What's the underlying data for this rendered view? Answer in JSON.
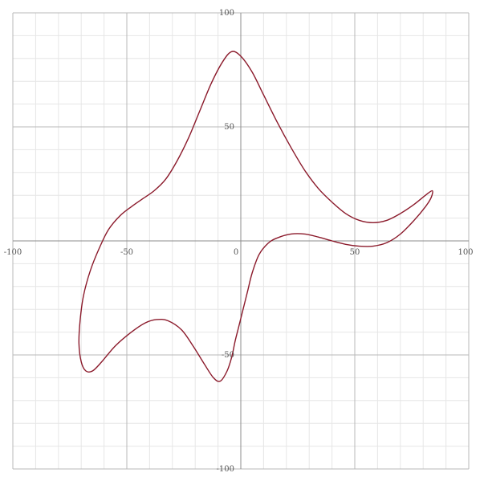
{
  "chart_data": {
    "type": "line",
    "title": "",
    "xlabel": "",
    "ylabel": "",
    "xlim": [
      -100,
      100
    ],
    "ylim": [
      -100,
      100
    ],
    "grid": true,
    "minor_grid_step": 10,
    "major_grid_step": 50,
    "closed": true,
    "x_tick_labels": [
      "-100",
      "-50",
      "0",
      "50",
      "100"
    ],
    "y_tick_labels": [
      "100",
      "50",
      "-50",
      "-100"
    ],
    "series": [
      {
        "color": "#8b1a2b",
        "points": [
          [
            -4,
            83
          ],
          [
            0,
            81
          ],
          [
            5,
            74
          ],
          [
            10,
            64
          ],
          [
            16,
            52
          ],
          [
            22,
            41
          ],
          [
            28,
            31
          ],
          [
            34,
            23
          ],
          [
            40,
            17
          ],
          [
            46,
            12
          ],
          [
            52,
            9
          ],
          [
            58,
            8
          ],
          [
            64,
            9
          ],
          [
            70,
            12
          ],
          [
            76,
            16
          ],
          [
            81,
            20
          ],
          [
            84,
            22
          ],
          [
            83.5,
            19
          ],
          [
            81,
            15
          ],
          [
            76,
            9
          ],
          [
            70,
            3
          ],
          [
            64,
            -0.8
          ],
          [
            58,
            -2.3
          ],
          [
            52,
            -2.3
          ],
          [
            46,
            -1.5
          ],
          [
            40,
            0
          ],
          [
            34,
            1.7
          ],
          [
            28,
            3
          ],
          [
            22,
            3
          ],
          [
            16,
            1.3
          ],
          [
            12,
            -1
          ],
          [
            8,
            -6
          ],
          [
            5,
            -14
          ],
          [
            3,
            -22
          ],
          [
            1,
            -30
          ],
          [
            -1,
            -38
          ],
          [
            -2.5,
            -44
          ],
          [
            -4,
            -51
          ],
          [
            -6,
            -57
          ],
          [
            -9,
            -61.5
          ],
          [
            -12,
            -60
          ],
          [
            -16,
            -54
          ],
          [
            -21,
            -46
          ],
          [
            -26,
            -39
          ],
          [
            -32,
            -35
          ],
          [
            -37,
            -34.5
          ],
          [
            -42,
            -36
          ],
          [
            -48,
            -40
          ],
          [
            -55,
            -46
          ],
          [
            -61,
            -53
          ],
          [
            -65,
            -57
          ],
          [
            -68,
            -57
          ],
          [
            -70,
            -53
          ],
          [
            -71,
            -45
          ],
          [
            -70.5,
            -35
          ],
          [
            -69,
            -24
          ],
          [
            -66,
            -13
          ],
          [
            -62,
            -3
          ],
          [
            -58,
            5
          ],
          [
            -53,
            11
          ],
          [
            -48,
            15
          ],
          [
            -43,
            18.5
          ],
          [
            -38,
            22
          ],
          [
            -33,
            27
          ],
          [
            -28,
            35
          ],
          [
            -23,
            45
          ],
          [
            -18,
            57
          ],
          [
            -13,
            69
          ],
          [
            -8,
            78.5
          ],
          [
            -4,
            83
          ]
        ]
      }
    ]
  }
}
